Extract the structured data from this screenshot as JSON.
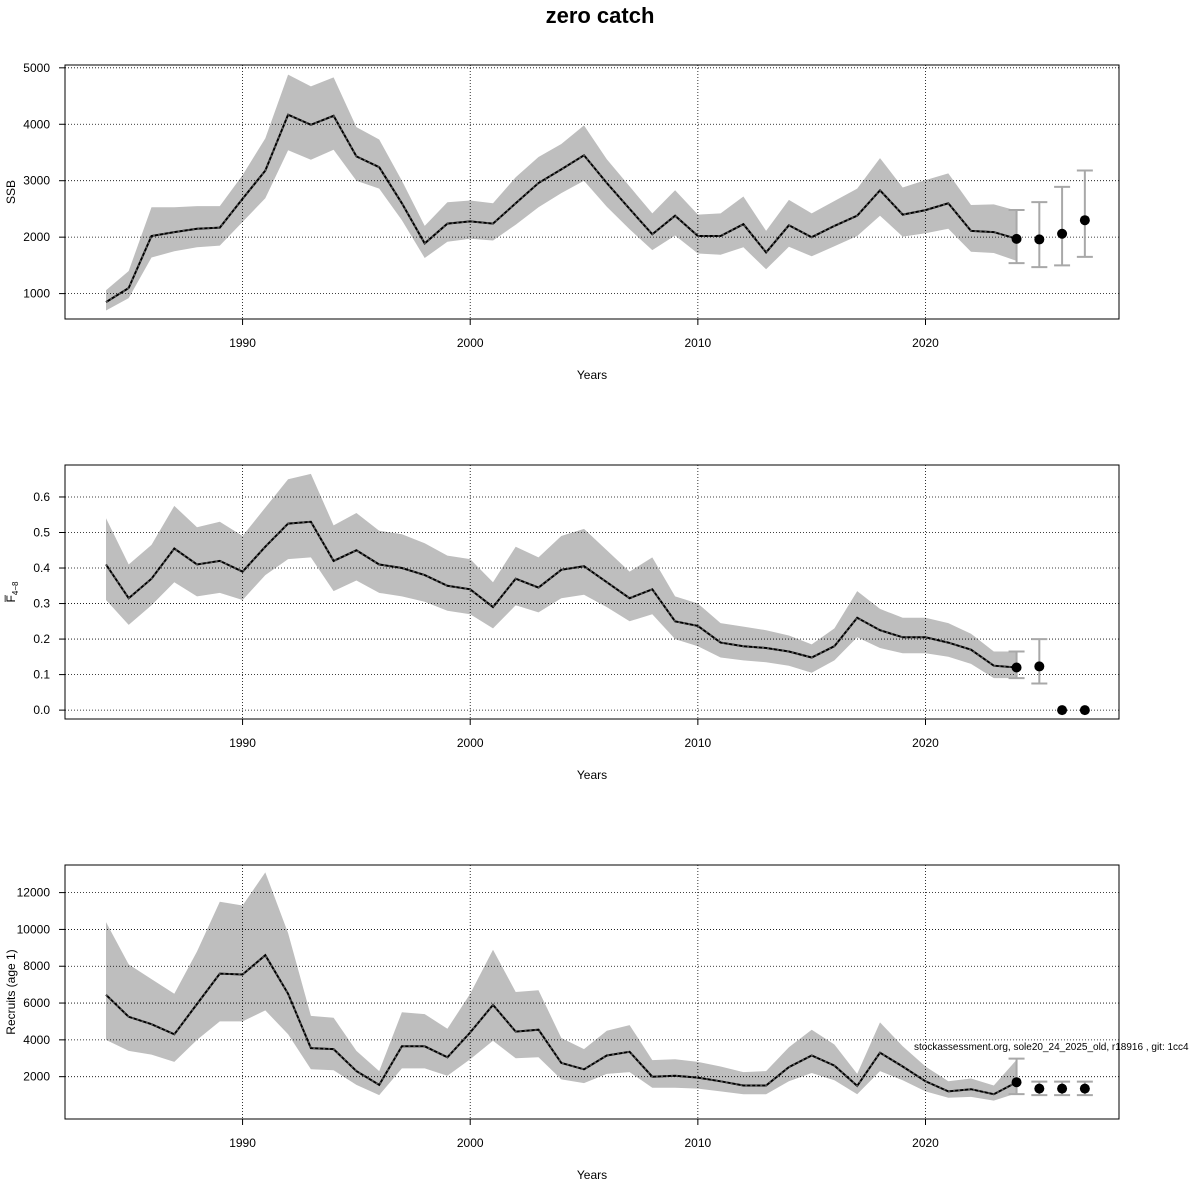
{
  "title": "zero catch",
  "footer_note": "stockassessment.org, sole20_24_2025_old, r18916 , git: 1cc4",
  "chart_data": [
    {
      "type": "line",
      "name": "ssb",
      "xlabel": "Years",
      "ylabel": "SSB",
      "xlim": [
        1982.2,
        2028.5
      ],
      "ylim": [
        550,
        5050
      ],
      "xticks": [
        1990,
        2000,
        2010,
        2020
      ],
      "yticks": [
        1000,
        2000,
        3000,
        4000,
        5000
      ],
      "ytick_labels": [
        "1000",
        "2000",
        "3000",
        "4000",
        "5000"
      ],
      "grid": true,
      "x": [
        1984,
        1985,
        1986,
        1987,
        1988,
        1989,
        1990,
        1991,
        1992,
        1993,
        1994,
        1995,
        1996,
        1997,
        1998,
        1999,
        2000,
        2001,
        2002,
        2003,
        2004,
        2005,
        2006,
        2007,
        2008,
        2009,
        2010,
        2011,
        2012,
        2013,
        2014,
        2015,
        2016,
        2017,
        2018,
        2019,
        2020,
        2021,
        2022,
        2023,
        2024
      ],
      "estimate": [
        850,
        1100,
        2020,
        2090,
        2150,
        2170,
        2680,
        3180,
        4170,
        3990,
        4150,
        3430,
        3240,
        2600,
        1890,
        2240,
        2280,
        2240,
        2600,
        2960,
        3200,
        3450,
        2960,
        2500,
        2050,
        2380,
        2020,
        2020,
        2230,
        1730,
        2210,
        2000,
        2200,
        2380,
        2830,
        2400,
        2480,
        2600,
        2110,
        2090,
        1970
      ],
      "lower": [
        700,
        920,
        1640,
        1750,
        1820,
        1850,
        2270,
        2690,
        3540,
        3370,
        3550,
        3000,
        2860,
        2300,
        1630,
        1920,
        1970,
        1940,
        2220,
        2530,
        2780,
        3000,
        2540,
        2140,
        1770,
        2030,
        1710,
        1690,
        1820,
        1430,
        1830,
        1660,
        1840,
        2020,
        2380,
        2010,
        2070,
        2150,
        1740,
        1720,
        1580
      ],
      "upper": [
        1060,
        1400,
        2530,
        2530,
        2550,
        2550,
        3100,
        3750,
        4880,
        4670,
        4830,
        3950,
        3730,
        3000,
        2200,
        2620,
        2650,
        2600,
        3060,
        3420,
        3650,
        3980,
        3380,
        2900,
        2420,
        2830,
        2400,
        2420,
        2720,
        2110,
        2660,
        2420,
        2640,
        2860,
        3400,
        2880,
        3010,
        3130,
        2570,
        2580,
        2470
      ],
      "forecast_x": [
        2024,
        2025,
        2026,
        2027
      ],
      "forecast_values": [
        1970,
        1960,
        2060,
        2300
      ],
      "forecast_lower": [
        1540,
        1470,
        1500,
        1650
      ],
      "forecast_upper": [
        2480,
        2620,
        2890,
        3180
      ]
    },
    {
      "type": "line",
      "name": "fbar",
      "xlabel": "Years",
      "ylabel": "F̅",
      "ylabel_sub": "4−8",
      "xlim": [
        1982.2,
        2028.5
      ],
      "ylim": [
        -0.025,
        0.69
      ],
      "xticks": [
        1990,
        2000,
        2010,
        2020
      ],
      "yticks": [
        0.0,
        0.1,
        0.2,
        0.3,
        0.4,
        0.5,
        0.6
      ],
      "ytick_labels": [
        "0.0",
        "0.1",
        "0.2",
        "0.3",
        "0.4",
        "0.5",
        "0.6"
      ],
      "grid": true,
      "x": [
        1984,
        1985,
        1986,
        1987,
        1988,
        1989,
        1990,
        1991,
        1992,
        1993,
        1994,
        1995,
        1996,
        1997,
        1998,
        1999,
        2000,
        2001,
        2002,
        2003,
        2004,
        2005,
        2006,
        2007,
        2008,
        2009,
        2010,
        2011,
        2012,
        2013,
        2014,
        2015,
        2016,
        2017,
        2018,
        2019,
        2020,
        2021,
        2022,
        2023,
        2024
      ],
      "estimate": [
        0.41,
        0.315,
        0.37,
        0.455,
        0.41,
        0.42,
        0.39,
        0.46,
        0.525,
        0.53,
        0.42,
        0.45,
        0.41,
        0.4,
        0.38,
        0.35,
        0.34,
        0.29,
        0.37,
        0.345,
        0.395,
        0.405,
        0.36,
        0.315,
        0.34,
        0.25,
        0.237,
        0.19,
        0.18,
        0.175,
        0.165,
        0.148,
        0.18,
        0.26,
        0.225,
        0.205,
        0.205,
        0.19,
        0.17,
        0.125,
        0.12
      ],
      "lower": [
        0.31,
        0.24,
        0.295,
        0.36,
        0.32,
        0.33,
        0.31,
        0.38,
        0.425,
        0.43,
        0.335,
        0.365,
        0.33,
        0.32,
        0.305,
        0.28,
        0.27,
        0.23,
        0.295,
        0.275,
        0.315,
        0.325,
        0.29,
        0.25,
        0.27,
        0.2,
        0.18,
        0.148,
        0.14,
        0.135,
        0.125,
        0.105,
        0.14,
        0.205,
        0.175,
        0.16,
        0.16,
        0.15,
        0.13,
        0.09,
        0.09
      ],
      "upper": [
        0.54,
        0.41,
        0.465,
        0.575,
        0.515,
        0.53,
        0.49,
        0.57,
        0.65,
        0.665,
        0.52,
        0.555,
        0.505,
        0.495,
        0.47,
        0.435,
        0.425,
        0.36,
        0.46,
        0.43,
        0.49,
        0.51,
        0.45,
        0.39,
        0.43,
        0.32,
        0.3,
        0.245,
        0.235,
        0.225,
        0.21,
        0.185,
        0.23,
        0.335,
        0.285,
        0.26,
        0.26,
        0.245,
        0.215,
        0.165,
        0.165
      ],
      "forecast_x": [
        2024,
        2025,
        2026,
        2027
      ],
      "forecast_values": [
        0.12,
        0.123,
        0.0,
        0.0
      ],
      "forecast_lower": [
        0.09,
        0.075,
        null,
        null
      ],
      "forecast_upper": [
        0.165,
        0.2,
        null,
        null
      ]
    },
    {
      "type": "line",
      "name": "recruits",
      "xlabel": "Years",
      "ylabel": "Recruits (age 1)",
      "xlim": [
        1982.2,
        2028.5
      ],
      "ylim": [
        -300,
        13500
      ],
      "xticks": [
        1990,
        2000,
        2010,
        2020
      ],
      "yticks": [
        2000,
        4000,
        6000,
        8000,
        10000,
        12000
      ],
      "ytick_labels": [
        "2000",
        "4000",
        "6000",
        "8000",
        "10000",
        "12000"
      ],
      "grid": true,
      "x": [
        1984,
        1985,
        1986,
        1987,
        1988,
        1989,
        1990,
        1991,
        1992,
        1993,
        1994,
        1995,
        1996,
        1997,
        1998,
        1999,
        2000,
        2001,
        2002,
        2003,
        2004,
        2005,
        2006,
        2007,
        2008,
        2009,
        2010,
        2011,
        2012,
        2013,
        2014,
        2015,
        2016,
        2017,
        2018,
        2019,
        2020,
        2021,
        2022,
        2023,
        2024
      ],
      "estimate": [
        6450,
        5250,
        4850,
        4300,
        5950,
        7600,
        7550,
        8600,
        6500,
        3550,
        3500,
        2300,
        1550,
        3650,
        3650,
        3050,
        4400,
        5900,
        4450,
        4550,
        2750,
        2400,
        3150,
        3350,
        2000,
        2050,
        1950,
        1750,
        1520,
        1520,
        2520,
        3150,
        2600,
        1500,
        3300,
        2550,
        1750,
        1200,
        1320,
        1050,
        1700
      ],
      "lower": [
        4000,
        3400,
        3200,
        2800,
        4000,
        5000,
        5000,
        5600,
        4300,
        2400,
        2350,
        1550,
        1000,
        2450,
        2450,
        2050,
        2950,
        3950,
        3000,
        3050,
        1850,
        1650,
        2150,
        2250,
        1400,
        1400,
        1350,
        1200,
        1050,
        1050,
        1750,
        2200,
        1800,
        1050,
        2300,
        1800,
        1200,
        850,
        900,
        700,
        1100
      ],
      "upper": [
        10400,
        8100,
        7300,
        6500,
        8800,
        11500,
        11300,
        13100,
        9800,
        5300,
        5200,
        3400,
        2300,
        5500,
        5400,
        4600,
        6500,
        8900,
        6600,
        6700,
        4100,
        3500,
        4500,
        4800,
        2900,
        2950,
        2800,
        2550,
        2250,
        2300,
        3600,
        4550,
        3750,
        2150,
        4950,
        3650,
        2550,
        1750,
        1900,
        1520,
        2920
      ],
      "forecast_x": [
        2024,
        2025,
        2026,
        2027
      ],
      "forecast_values": [
        1700,
        1350,
        1350,
        1350
      ],
      "forecast_lower": [
        1050,
        1000,
        1000,
        1000
      ],
      "forecast_upper": [
        2980,
        1730,
        1730,
        1730
      ]
    }
  ]
}
